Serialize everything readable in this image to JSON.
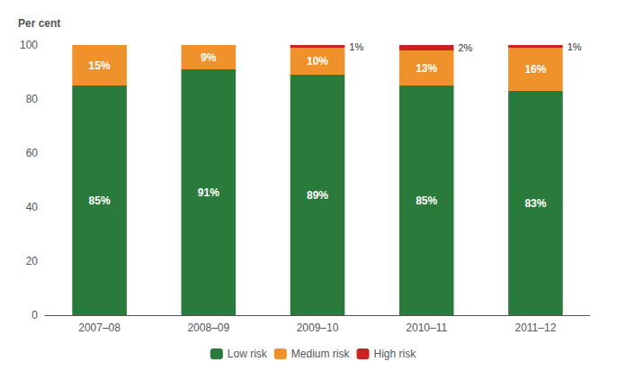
{
  "chart_data": {
    "type": "bar",
    "ylabel": "Per cent",
    "categories": [
      "2007–08",
      "2008–09",
      "2009–10",
      "2010–11",
      "2011–12"
    ],
    "series": [
      {
        "name": "Low risk",
        "color": "#2a7a3b",
        "values": [
          85,
          91,
          89,
          85,
          83
        ],
        "value_labels": [
          "85%",
          "91%",
          "89%",
          "85%",
          "83%"
        ]
      },
      {
        "name": "Medium risk",
        "color": "#f0922b",
        "values": [
          15,
          9,
          10,
          13,
          16
        ],
        "value_labels": [
          "15%",
          "9%",
          "10%",
          "13%",
          "16%"
        ]
      },
      {
        "name": "High risk",
        "color": "#cc2222",
        "values": [
          0,
          0,
          1,
          2,
          1
        ],
        "value_labels": [
          null,
          null,
          "1%",
          "2%",
          "1%"
        ]
      }
    ],
    "ylim": [
      0,
      100
    ],
    "yticks": [
      0,
      20,
      40,
      60,
      80,
      100
    ],
    "stacked": true,
    "data_labels": true,
    "grid": false,
    "legend": "bottom"
  }
}
